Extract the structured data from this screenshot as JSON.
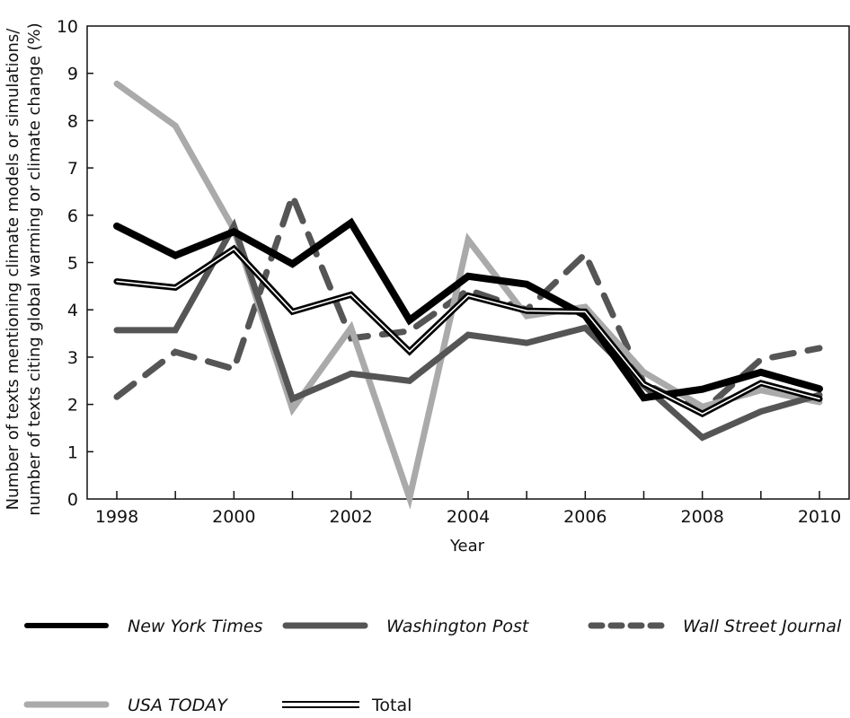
{
  "chart_data": {
    "type": "line",
    "title": "",
    "xlabel": "Year",
    "ylabel_lines": [
      "Number of texts mentioning climate models or simulations/",
      "number of texts citing global warming or climate change (%)"
    ],
    "x": [
      1998,
      1999,
      2000,
      2001,
      2002,
      2003,
      2004,
      2005,
      2006,
      2007,
      2008,
      2009,
      2010
    ],
    "x_tick_labels": [
      "1998",
      "2000",
      "2002",
      "2004",
      "2006",
      "2008",
      "2010"
    ],
    "y_tick_labels": [
      "0",
      "1",
      "2",
      "3",
      "4",
      "5",
      "6",
      "7",
      "8",
      "9",
      "10"
    ],
    "xlim": [
      1997.5,
      2010.5
    ],
    "ylim": [
      0,
      10
    ],
    "grid": false,
    "legend_position": "bottom",
    "series": [
      {
        "name": "New York Times",
        "style": "solid-thick",
        "color": "#000000",
        "values": [
          5.77,
          5.15,
          5.65,
          4.97,
          5.84,
          3.78,
          4.71,
          4.54,
          3.88,
          2.14,
          2.32,
          2.68,
          2.33
        ]
      },
      {
        "name": "Washington Post",
        "style": "solid",
        "color": "#555555",
        "values": [
          3.57,
          3.57,
          5.77,
          2.12,
          2.65,
          2.5,
          3.47,
          3.3,
          3.62,
          2.4,
          1.3,
          1.85,
          2.2
        ]
      },
      {
        "name": "Wall Street Journal",
        "style": "dashed",
        "color": "#555555",
        "values": [
          2.16,
          3.11,
          2.75,
          6.41,
          3.4,
          3.55,
          4.42,
          4.0,
          5.18,
          2.45,
          1.85,
          2.95,
          3.19
        ]
      },
      {
        "name": "USA TODAY",
        "style": "solid",
        "color": "#aaaaaa",
        "values": [
          8.78,
          7.89,
          5.7,
          1.9,
          3.62,
          0.02,
          5.48,
          3.87,
          4.06,
          2.68,
          1.95,
          2.3,
          2.05
        ]
      },
      {
        "name": "Total",
        "style": "double",
        "color": "#000000",
        "values": [
          4.6,
          4.47,
          5.29,
          3.96,
          4.32,
          3.12,
          4.3,
          3.98,
          3.96,
          2.43,
          1.8,
          2.45,
          2.12
        ]
      }
    ]
  }
}
